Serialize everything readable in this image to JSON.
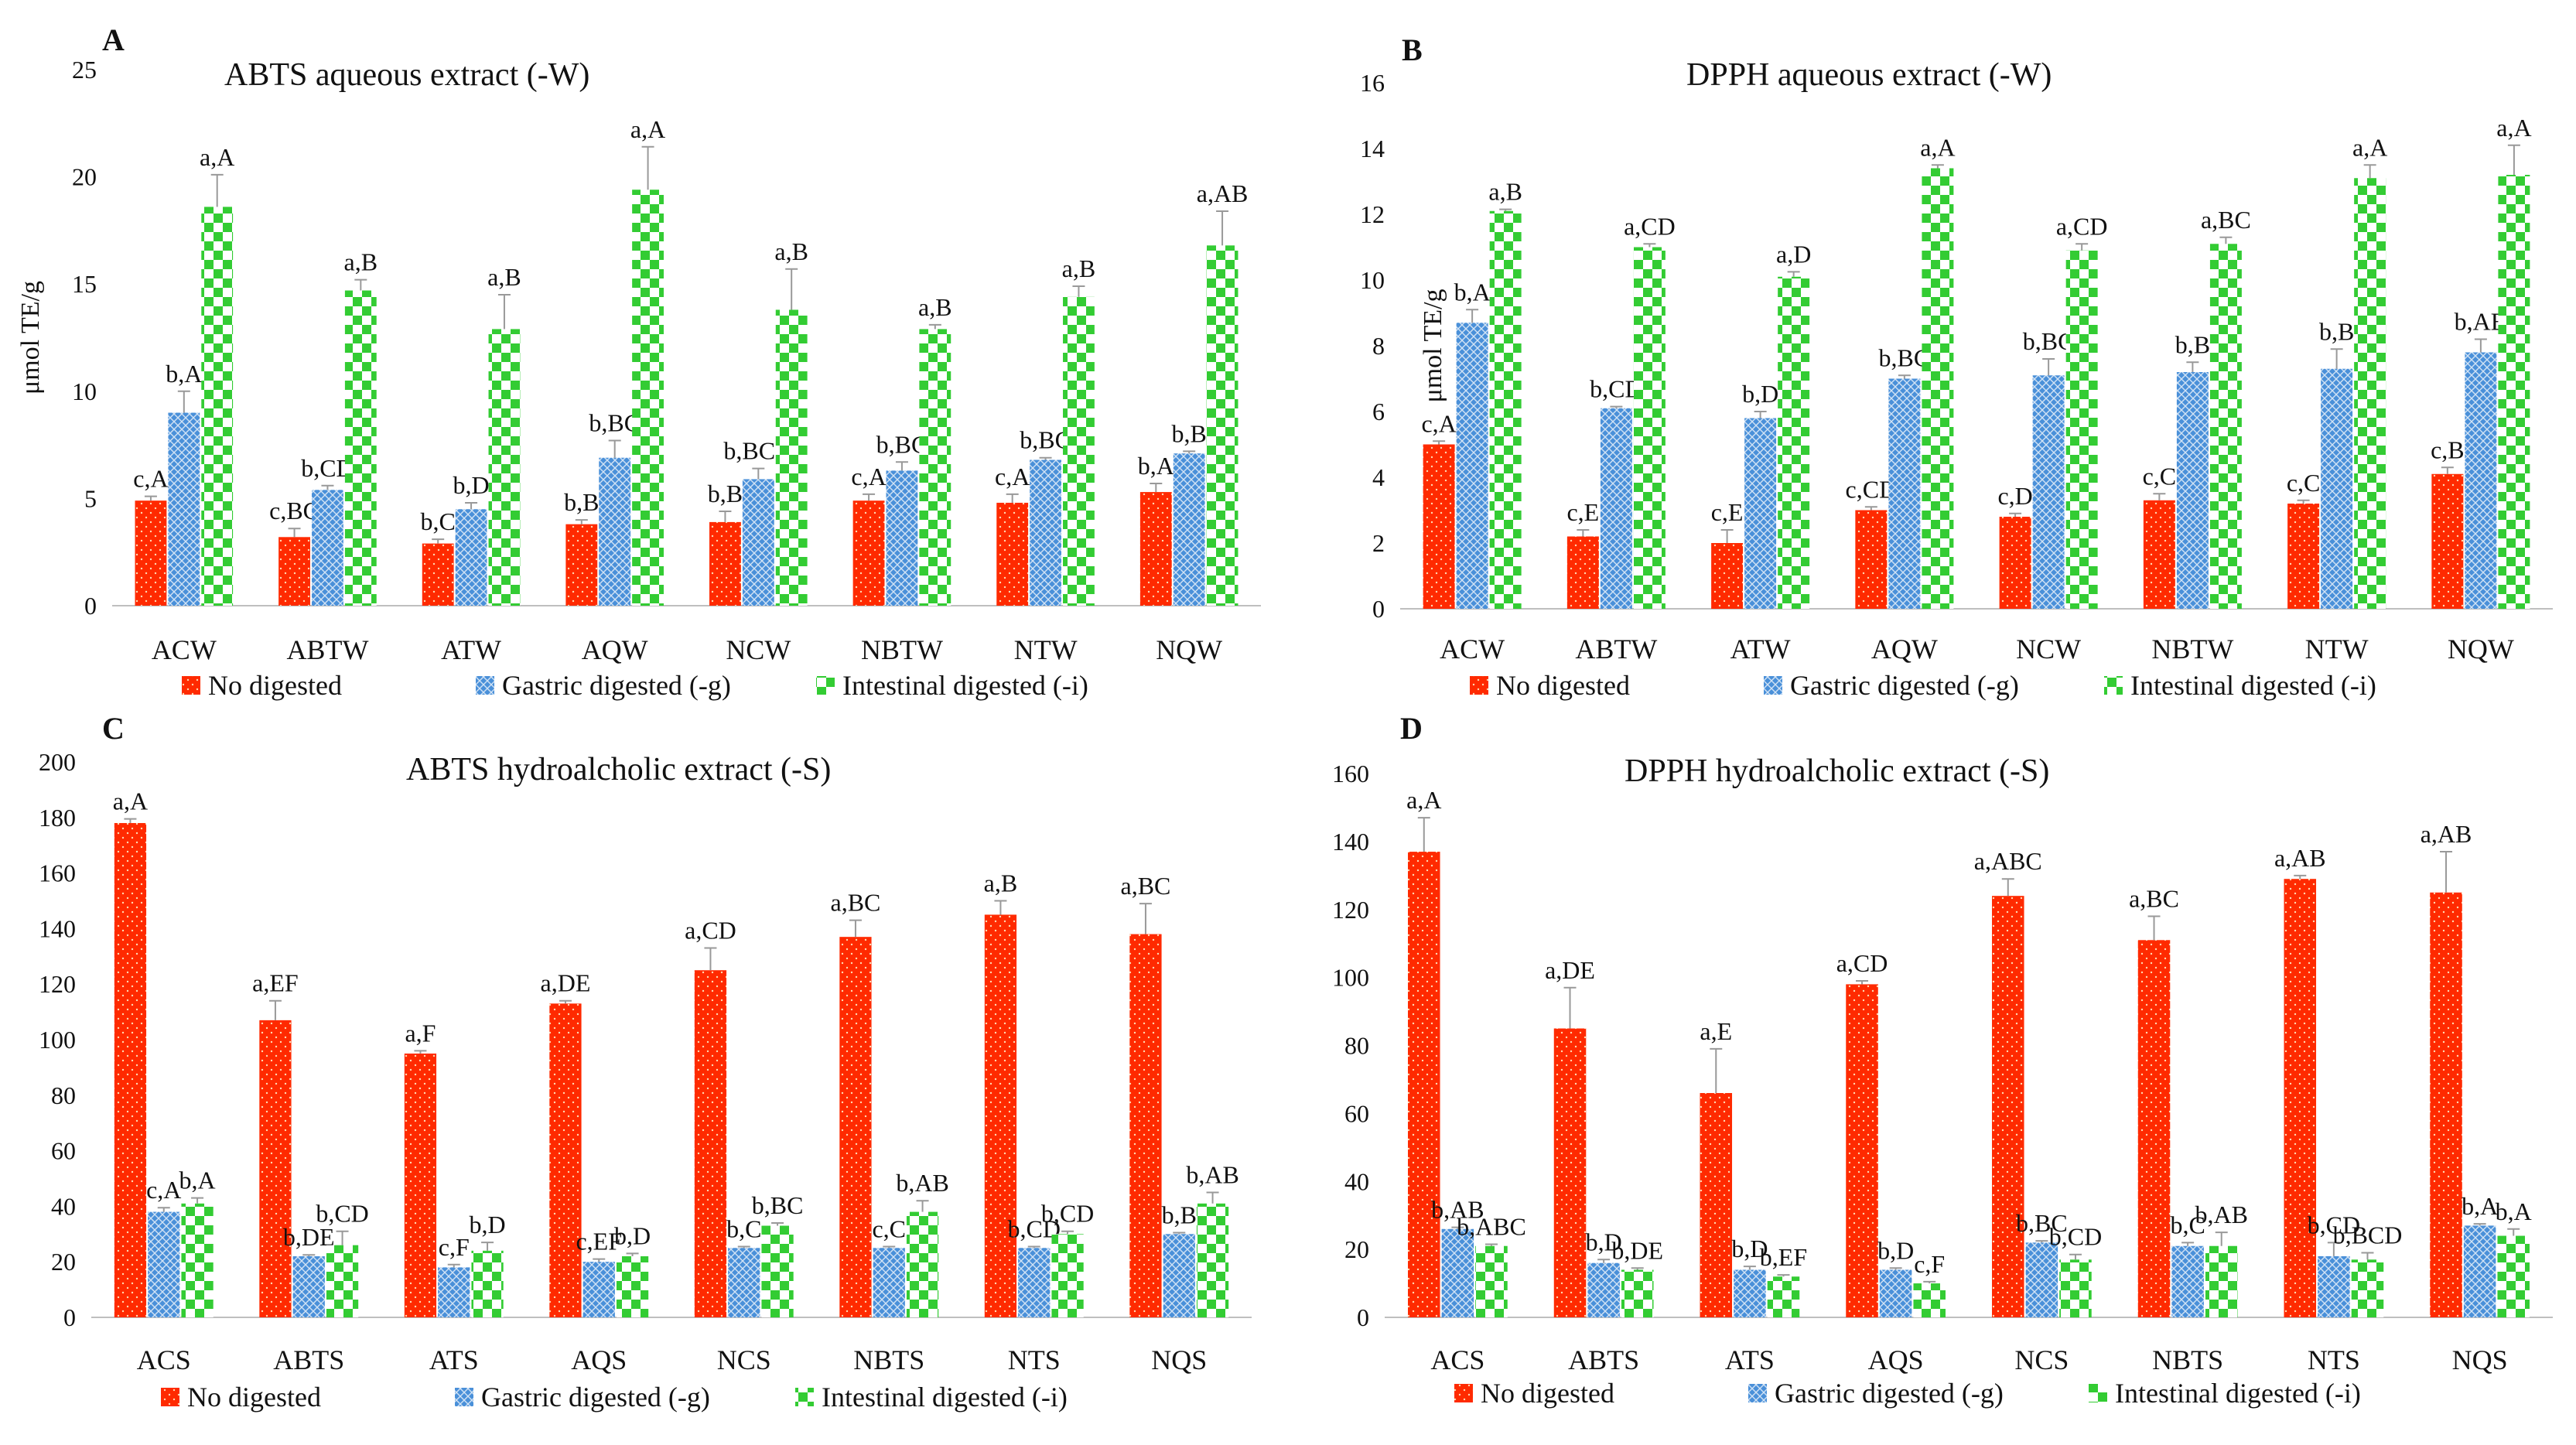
{
  "colors": {
    "no_digested": "#ff2a00",
    "gastric": "#4a90d9",
    "intestinal": "#33cc33",
    "axis": "#bfbfbf",
    "text": "#111111"
  },
  "legend": [
    "No digested",
    "Gastric digested (-g)",
    "Intestinal digested (-i)"
  ],
  "chart_data": [
    {
      "panel": "A",
      "type": "bar",
      "title": "ABTS aqueous extract (-W)",
      "ylabel": "μmol TE/g",
      "ylim": [
        0,
        25
      ],
      "yticks": [
        0,
        5,
        10,
        15,
        20,
        25
      ],
      "categories": [
        "ACW",
        "ABTW",
        "ATW",
        "AQW",
        "NCW",
        "NBTW",
        "NTW",
        "NQW"
      ],
      "series": [
        {
          "name": "No digested",
          "values": [
            4.9,
            3.2,
            2.9,
            3.8,
            3.9,
            4.9,
            4.8,
            5.3
          ],
          "errors": [
            0.2,
            0.4,
            0.2,
            0.2,
            0.5,
            0.3,
            0.4,
            0.4
          ],
          "labels": [
            "c,A",
            "c,BC",
            "b,C",
            "b,B",
            "b,B",
            "c,A",
            "c,A",
            "b,A"
          ]
        },
        {
          "name": "Gastric digested (-g)",
          "values": [
            9.0,
            5.4,
            4.5,
            6.9,
            5.9,
            6.3,
            6.8,
            7.1
          ],
          "errors": [
            1.0,
            0.2,
            0.3,
            0.8,
            0.5,
            0.4,
            0.1,
            0.1
          ],
          "labels": [
            "b,A",
            "b,CD",
            "b,D",
            "b,BC",
            "b,BCD",
            "b,BC",
            "b,BC",
            "b,B"
          ]
        },
        {
          "name": "Intestinal digested (-i)",
          "values": [
            18.6,
            14.7,
            12.9,
            19.4,
            13.8,
            12.9,
            14.4,
            16.8
          ],
          "errors": [
            1.5,
            0.5,
            1.6,
            2.0,
            1.9,
            0.2,
            0.5,
            1.6
          ],
          "labels": [
            "a,A",
            "a,B",
            "a,B",
            "a,A",
            "a,B",
            "a,B",
            "a,B",
            "a,AB"
          ]
        }
      ]
    },
    {
      "panel": "B",
      "type": "bar",
      "title": "DPPH aqueous extract (-W)",
      "ylabel": "μmol TE/g",
      "ylim": [
        0,
        16
      ],
      "yticks": [
        0,
        2,
        4,
        6,
        8,
        10,
        12,
        14,
        16
      ],
      "categories": [
        "ACW",
        "ABTW",
        "ATW",
        "AQW",
        "NCW",
        "NBTW",
        "NTW",
        "NQW"
      ],
      "series": [
        {
          "name": "No digested",
          "values": [
            5.0,
            2.2,
            2.0,
            3.0,
            2.8,
            3.3,
            3.2,
            4.1
          ],
          "errors": [
            0.1,
            0.2,
            0.4,
            0.1,
            0.1,
            0.2,
            0.1,
            0.2
          ],
          "labels": [
            "c,A",
            "c,E",
            "c,E",
            "c,CD",
            "c,D",
            "c,C",
            "c,C",
            "c,B"
          ]
        },
        {
          "name": "Gastric digested (-g)",
          "values": [
            8.7,
            6.1,
            5.8,
            7.0,
            7.1,
            7.2,
            7.3,
            7.8
          ],
          "errors": [
            0.4,
            0.05,
            0.2,
            0.1,
            0.5,
            0.3,
            0.6,
            0.4
          ],
          "labels": [
            "b,A",
            "b,CD",
            "b,D",
            "b,BC",
            "b,BC",
            "b,B",
            "b,B",
            "b,AB"
          ]
        },
        {
          "name": "Intestinal digested (-i)",
          "values": [
            12.1,
            11.0,
            10.1,
            13.4,
            10.9,
            11.1,
            13.1,
            13.2
          ],
          "errors": [
            0.05,
            0.1,
            0.15,
            0.1,
            0.2,
            0.2,
            0.4,
            0.9
          ],
          "labels": [
            "a,B",
            "a,CD",
            "a,D",
            "a,A",
            "a,CD",
            "a,BC",
            "a,A",
            "a,A"
          ]
        }
      ]
    },
    {
      "panel": "C",
      "type": "bar",
      "title": "ABTS hydroalcholic extract (-S)",
      "ylabel": "μmol TE/g",
      "ylim": [
        0,
        200
      ],
      "yticks": [
        0,
        20,
        40,
        60,
        80,
        100,
        120,
        140,
        160,
        180,
        200
      ],
      "categories": [
        "ACS",
        "ABTS",
        "ATS",
        "AQS",
        "NCS",
        "NBTS",
        "NTS",
        "NQS"
      ],
      "series": [
        {
          "name": "No digested",
          "values": [
            178,
            107,
            95,
            113,
            125,
            137,
            145,
            138
          ],
          "errors": [
            1.5,
            7,
            1,
            1,
            8,
            6,
            5,
            11
          ],
          "labels": [
            "a,A",
            "a,EF",
            "a,F",
            "a,DE",
            "a,CD",
            "a,BC",
            "a,B",
            "a,BC"
          ]
        },
        {
          "name": "Gastric digested (-g)",
          "values": [
            38,
            22,
            18,
            20,
            25,
            25,
            25,
            30
          ],
          "errors": [
            1.5,
            0.5,
            1,
            1,
            0.5,
            0.5,
            0.5,
            0.5
          ],
          "labels": [
            "c,A",
            "b,DE",
            "c,F",
            "c,EF",
            "b,C",
            "c,C",
            "b,CD",
            "b,B"
          ]
        },
        {
          "name": "Intestinal digested (-i)",
          "values": [
            41,
            26,
            24,
            22,
            33,
            38,
            30,
            41
          ],
          "errors": [
            2,
            5,
            3,
            1,
            1,
            4,
            1,
            4
          ],
          "labels": [
            "b,A",
            "b,CD",
            "b,D",
            "b,D",
            "b,BC",
            "b,AB",
            "b,CD",
            "b,AB"
          ]
        }
      ]
    },
    {
      "panel": "D",
      "type": "bar",
      "title": "DPPH hydroalcholic extract (-S)",
      "ylabel": "μmol TE/g",
      "ylim": [
        0,
        160
      ],
      "yticks": [
        0,
        20,
        40,
        60,
        80,
        100,
        120,
        140,
        160
      ],
      "categories": [
        "ACS",
        "ABTS",
        "ATS",
        "AQS",
        "NCS",
        "NBTS",
        "NTS",
        "NQS"
      ],
      "series": [
        {
          "name": "No digested",
          "values": [
            137,
            85,
            66,
            98,
            124,
            111,
            129,
            125
          ],
          "errors": [
            10,
            12,
            13,
            1,
            5,
            7,
            1,
            12
          ],
          "labels": [
            "a,A",
            "a,DE",
            "a,E",
            "a,CD",
            "a,ABC",
            "a,BC",
            "a,AB",
            "a,AB"
          ]
        },
        {
          "name": "Gastric digested (-g)",
          "values": [
            26,
            16,
            14,
            14,
            22,
            21,
            18,
            27
          ],
          "errors": [
            0.5,
            1,
            1,
            0.5,
            0.5,
            1,
            4,
            0.5
          ],
          "labels": [
            "b,AB",
            "b,D",
            "b,D",
            "b,D",
            "b,BC",
            "b,C",
            "b,CD",
            "b,A"
          ]
        },
        {
          "name": "Intestinal digested (-i)",
          "values": [
            21,
            14,
            12,
            10,
            17,
            21,
            17,
            24
          ],
          "errors": [
            0.5,
            0.5,
            0.5,
            0.5,
            1.5,
            4,
            2,
            2
          ],
          "labels": [
            "b,ABC",
            "b,DE",
            "b,EF",
            "c,F",
            "b,CD",
            "b,AB",
            "b,BCD",
            "b,A"
          ]
        }
      ]
    }
  ]
}
